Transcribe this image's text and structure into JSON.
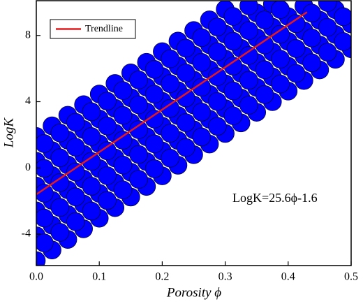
{
  "chart_data": {
    "type": "scatter",
    "x_label": "Porosity ϕ",
    "y_label": "LogK",
    "annotation": "LogK=25.6ϕ-1.6",
    "xlim": [
      0,
      0.5
    ],
    "ylim": [
      -5.9,
      10.1
    ],
    "xticks": [
      {
        "value": 0,
        "label": "0.0"
      },
      0.1,
      0.2,
      0.3,
      0.4,
      0.5
    ],
    "yticks": [
      -4,
      0,
      4,
      8
    ],
    "legend_position": "upper left",
    "series": [
      {
        "color": "#0000ff",
        "x": [
          0,
          0,
          0,
          0,
          0,
          0,
          0.025,
          0.025,
          0.025,
          0.025,
          0.025,
          0.025,
          0.05,
          0.05,
          0.05,
          0.05,
          0.05,
          0.05,
          0.075,
          0.075,
          0.075,
          0.075,
          0.075,
          0.075,
          0.1,
          0.1,
          0.1,
          0.1,
          0.1,
          0.1,
          0.125,
          0.125,
          0.125,
          0.125,
          0.125,
          0.125,
          0.15,
          0.15,
          0.15,
          0.15,
          0.15,
          0.15,
          0.175,
          0.175,
          0.175,
          0.175,
          0.175,
          0.175,
          0.2,
          0.2,
          0.2,
          0.2,
          0.2,
          0.2,
          0.225,
          0.225,
          0.225,
          0.225,
          0.225,
          0.225,
          0.25,
          0.25,
          0.25,
          0.25,
          0.25,
          0.25,
          0.275,
          0.275,
          0.275,
          0.275,
          0.275,
          0.275,
          0.3,
          0.3,
          0.3,
          0.3,
          0.3,
          0.3,
          0.325,
          0.325,
          0.325,
          0.325,
          0.325,
          0.35,
          0.35,
          0.35,
          0.35,
          0.35,
          0.375,
          0.375,
          0.375,
          0.375,
          0.375,
          0.4,
          0.4,
          0.4,
          0.4,
          0.425,
          0.425,
          0.425,
          0.425,
          0.45,
          0.45,
          0.45,
          0.475,
          0.475,
          0.475,
          0.5,
          0.5,
          0.0125,
          0.0125,
          0.0125,
          0.0125,
          0.0125,
          0.0375,
          0.0375,
          0.0375,
          0.0375,
          0.0375,
          0.0625,
          0.0625,
          0.0625,
          0.0625,
          0.0625,
          0.0875,
          0.0875,
          0.0875,
          0.0875,
          0.0875,
          0.1125,
          0.1125,
          0.1125,
          0.1125,
          0.1125,
          0.1375,
          0.1375,
          0.1375,
          0.1375,
          0.1375,
          0.1625,
          0.1625,
          0.1625,
          0.1625,
          0.1625,
          0.1875,
          0.1875,
          0.1875,
          0.1875,
          0.1875,
          0.2125,
          0.2125,
          0.2125,
          0.2125,
          0.2125,
          0.2375,
          0.2375,
          0.2375,
          0.2375,
          0.2375,
          0.2625,
          0.2625,
          0.2625,
          0.2625,
          0.2625,
          0.2875,
          0.2875,
          0.2875,
          0.2875,
          0.2875,
          0.3125,
          0.3125,
          0.3125,
          0.3125,
          0.3125,
          0.3375,
          0.3375,
          0.3375,
          0.3375,
          0.3375,
          0.3625,
          0.3625,
          0.3625,
          0.3625,
          0.3875,
          0.3875,
          0.3875,
          0.3875,
          0.4125,
          0.4125,
          0.4125,
          0.4375,
          0.4375,
          0.4375,
          0.4625,
          0.4625,
          0.4625,
          0.4875,
          0.4875
        ],
        "values": [
          -5.6,
          -4.1,
          -2.6,
          -1.1,
          0.4,
          1.9,
          -4.96,
          -3.46,
          -1.96,
          -0.46,
          1.04,
          2.54,
          -4.32,
          -2.82,
          -1.32,
          0.18,
          1.68,
          3.18,
          -3.68,
          -2.18,
          -0.68,
          0.82,
          2.32,
          3.82,
          -3.04,
          -1.54,
          -0.04,
          1.46,
          2.96,
          4.46,
          -2.4,
          -0.9,
          0.6,
          2.1,
          3.6,
          5.1,
          -1.76,
          -0.26,
          1.24,
          2.74,
          4.24,
          5.74,
          -1.12,
          0.38,
          1.88,
          3.38,
          4.88,
          6.38,
          -0.48,
          1.02,
          2.52,
          4.02,
          5.52,
          7.02,
          0.16,
          1.66,
          3.16,
          4.66,
          6.16,
          7.66,
          0.8,
          2.3,
          3.8,
          5.3,
          6.8,
          8.3,
          1.44,
          2.94,
          4.44,
          5.94,
          7.44,
          8.94,
          2.08,
          3.58,
          5.08,
          6.58,
          8.08,
          9.58,
          2.72,
          4.22,
          5.72,
          7.22,
          8.72,
          3.36,
          4.86,
          6.36,
          7.86,
          9.36,
          4.0,
          5.5,
          7.0,
          8.5,
          9.9,
          4.64,
          6.14,
          7.64,
          9.14,
          5.28,
          6.78,
          8.28,
          9.78,
          5.92,
          7.42,
          8.92,
          6.56,
          8.06,
          9.56,
          7.2,
          8.7,
          -4.53,
          -3.03,
          -1.53,
          -0.03,
          1.47,
          -3.89,
          -2.39,
          -0.89,
          0.61,
          2.11,
          -3.25,
          -1.75,
          -0.25,
          1.25,
          2.75,
          -2.61,
          -1.11,
          0.39,
          1.89,
          3.39,
          -1.97,
          -0.47,
          1.03,
          2.53,
          4.03,
          -1.33,
          0.17,
          1.67,
          3.17,
          4.67,
          -0.69,
          0.81,
          2.31,
          3.81,
          5.31,
          -0.05,
          1.45,
          2.95,
          4.45,
          5.95,
          0.59,
          2.09,
          3.59,
          5.09,
          6.59,
          1.23,
          2.73,
          4.23,
          5.73,
          7.23,
          1.87,
          3.37,
          4.87,
          6.37,
          7.87,
          2.51,
          4.01,
          5.51,
          7.01,
          8.51,
          3.15,
          4.65,
          6.15,
          7.65,
          9.15,
          3.79,
          5.29,
          6.79,
          8.29,
          9.79,
          4.43,
          5.93,
          7.43,
          8.93,
          5.07,
          6.57,
          8.07,
          9.57,
          5.71,
          7.21,
          8.71,
          6.35,
          7.85,
          9.35,
          6.99,
          8.49,
          9.99,
          7.63,
          9.13
        ]
      },
      {
        "name": "Trendline",
        "type": "line",
        "color": "#e41a1c",
        "x": [
          0,
          0.43
        ],
        "values": [
          -1.6,
          9.41
        ]
      }
    ]
  }
}
